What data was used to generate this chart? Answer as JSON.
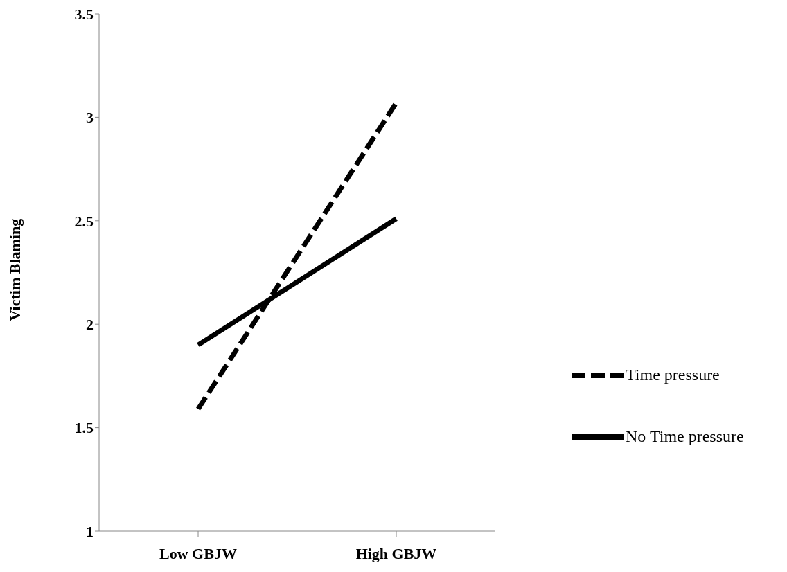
{
  "chart_data": {
    "type": "line",
    "ylabel": "Victim Blaming",
    "categories": [
      "Low GBJW",
      "High GBJW"
    ],
    "series": [
      {
        "name": "Time pressure",
        "color": "#000000",
        "line_style": "dashed",
        "values": [
          1.59,
          3.07
        ]
      },
      {
        "name": "No Time pressure",
        "color": "#000000",
        "line_style": "solid",
        "values": [
          1.9,
          2.51
        ]
      }
    ],
    "ylim": [
      1,
      3.5
    ],
    "yticks": [
      1,
      1.5,
      2,
      2.5,
      3,
      3.5
    ],
    "legend": "right",
    "marker": "none"
  }
}
